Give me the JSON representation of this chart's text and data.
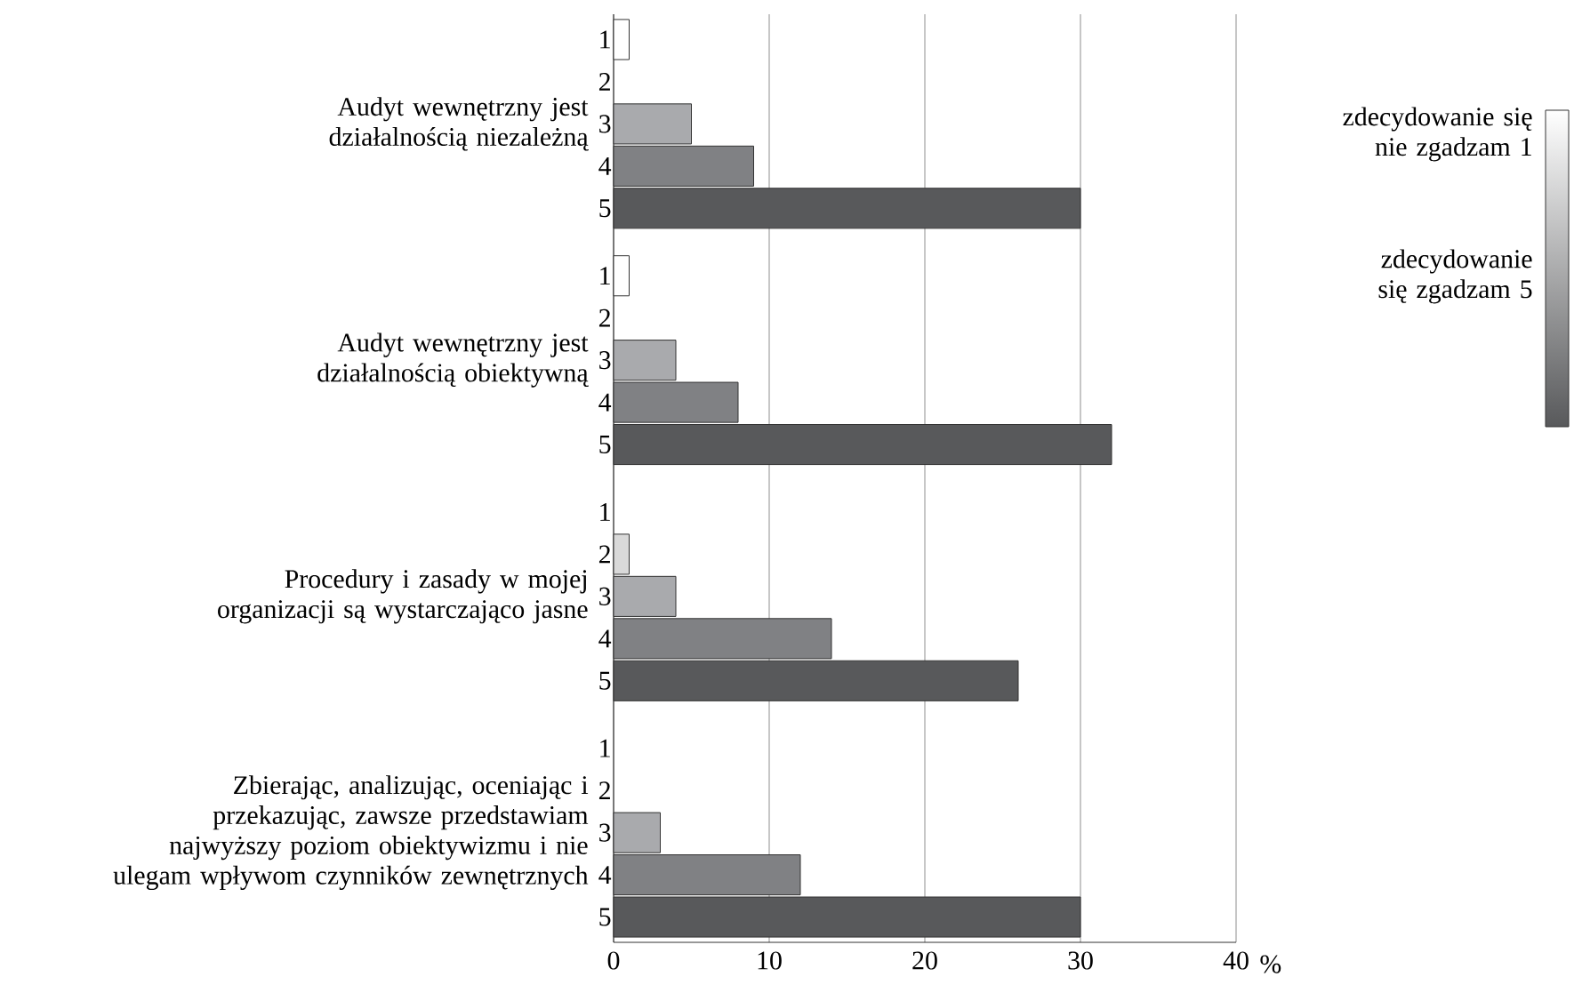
{
  "chart_data": {
    "type": "bar",
    "orientation": "horizontal",
    "categories": [
      "Audyt wewnętrzny jest działalnością niezależną",
      "Audyt wewnętrzny jest działalnością obiektywną",
      "Procedury i zasady w mojej organizacji są wystarczająco jasne",
      "Zbierając, analizując, oceniając i przekazując, zawsze przedstawiam najwyższy poziom obiektywizmu i nie ulegam wpływom czynników zewnętrznych"
    ],
    "series": [
      {
        "name": "1",
        "color": "#ffffff",
        "values": [
          1,
          1,
          0,
          0
        ]
      },
      {
        "name": "2",
        "color": "#d9d9d9",
        "values": [
          0,
          0,
          1,
          0
        ]
      },
      {
        "name": "3",
        "color": "#a9aaad",
        "values": [
          5,
          4,
          4,
          3
        ]
      },
      {
        "name": "4",
        "color": "#808184",
        "values": [
          9,
          8,
          14,
          12
        ]
      },
      {
        "name": "5",
        "color": "#58595b",
        "values": [
          30,
          32,
          26,
          30
        ]
      }
    ],
    "xlabel": "%",
    "xlim": [
      0,
      40
    ],
    "xticks": [
      0,
      10,
      20,
      30,
      40
    ],
    "grid": "x",
    "annotations": [
      "zdecydowanie się nie zgadzam 1",
      "zdecydowanie się zgadzam 5"
    ]
  }
}
